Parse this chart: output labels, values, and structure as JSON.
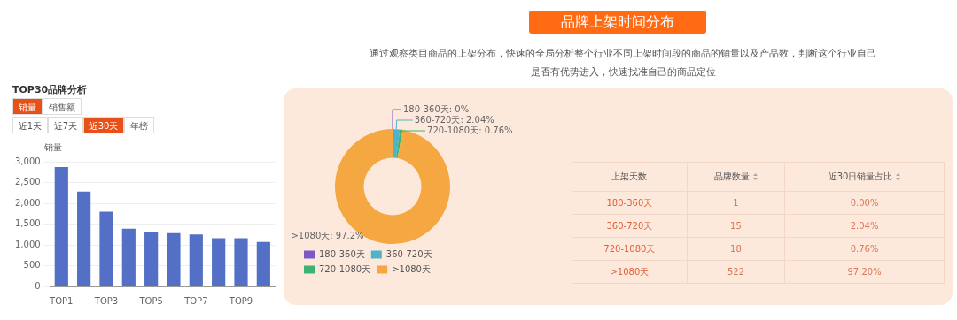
{
  "chart_data": [
    {
      "type": "bar",
      "title": "TOP30品牌分析",
      "ylabel": "销量",
      "annotations": [
        "销量",
        "销售额",
        "近1天",
        "近7天",
        "近30天",
        "年榜"
      ],
      "categories": [
        "TOP1",
        null,
        "TOP3",
        null,
        "TOP5",
        null,
        "TOP7",
        null,
        "TOP9",
        null
      ],
      "values": [
        2870,
        2280,
        1800,
        1390,
        1320,
        1280,
        1250,
        1160,
        1160,
        1070
      ],
      "color": "#5470c6",
      "ylim": [
        0,
        3000
      ],
      "yticks": [
        0,
        500,
        {
          "value": 1000,
          "label": "1,000"
        },
        {
          "value": 1500,
          "label": "1,500"
        },
        {
          "value": 2000,
          "label": "2,000"
        },
        {
          "value": 2500,
          "label": "2,500"
        },
        {
          "value": 3000,
          "label": "3,000"
        }
      ],
      "grid": "y"
    },
    {
      "type": "donut",
      "title": "品牌上架时间分布",
      "subtitle": "通过观察类目商品的上架分布，快速的全局分析整个行业不同上架时间段的商品的销量以及产品数，判断这个行业自己是否有优势进入，快速找准自己的商品定位",
      "categories": [
        "180-360天",
        "360-720天",
        "720-1080天",
        ">1080天"
      ],
      "values": [
        0,
        2.04,
        0.76,
        97.2
      ],
      "value_labels": [
        "180-360天: 0%",
        "360-720天: 2.04%",
        "720-1080天: 0.76%",
        ">1080天: 97.2%"
      ],
      "colors": [
        "#7e57c2",
        "#4fb3c8",
        "#3cb371",
        "#f5a742"
      ],
      "legend": "bottom"
    },
    {
      "type": "other",
      "annotations": [
        "上架天数",
        "品牌数量",
        "近30日销量占比",
        "180-360天",
        "1",
        "0.00%",
        "360-720天",
        "15",
        "2.04%",
        "720-1080天",
        "18",
        "0.76%",
        ">1080天",
        "522",
        "97.20%"
      ]
    }
  ]
}
